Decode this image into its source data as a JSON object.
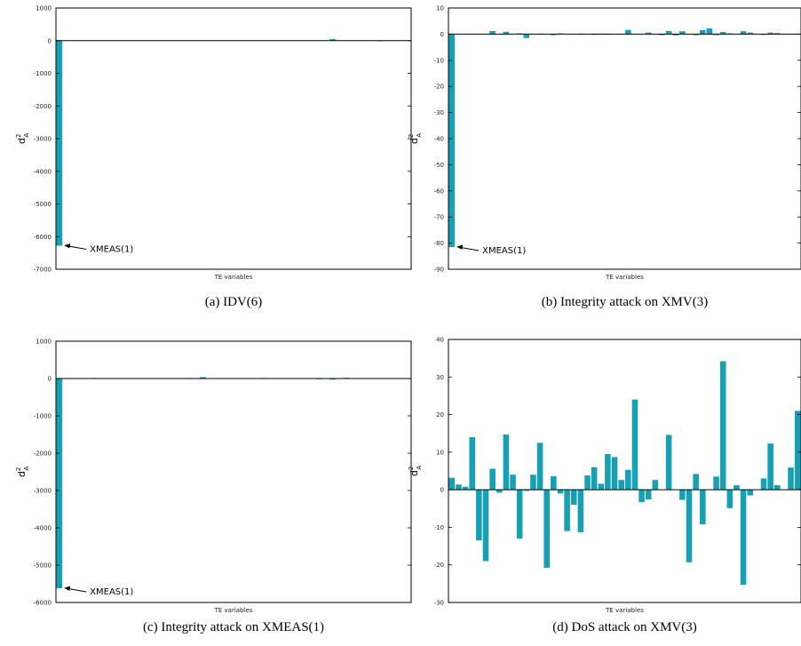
{
  "colors": {
    "bar": "#17a0b4",
    "axis": "#000000"
  },
  "chart_data": [
    {
      "type": "bar",
      "xlabel": "TE variables",
      "ylabel": "d",
      "ylabel_sup": "2",
      "ylabel_sub": "A",
      "ylim": [
        -7000,
        1000
      ],
      "yticks": [
        1000,
        0,
        -1000,
        -2000,
        -3000,
        -4000,
        -5000,
        -6000,
        -7000
      ],
      "n_bars": 52,
      "values": {
        "0": -6280,
        "40": 50,
        "47": -20
      },
      "annotation": {
        "text": "XMEAS(1)",
        "bar_index": 0,
        "value": -6280
      },
      "caption": "(a) IDV(6)"
    },
    {
      "type": "bar",
      "xlabel": "TE variables",
      "ylabel": "d",
      "ylabel_sup": "2",
      "ylabel_sub": "A",
      "ylim": [
        -90,
        10
      ],
      "yticks": [
        10,
        0,
        -10,
        -20,
        -30,
        -40,
        -50,
        -60,
        -70,
        -80,
        -90
      ],
      "n_bars": 52,
      "values": {
        "0": -81.5,
        "6": 1.2,
        "8": 0.9,
        "10": 0.3,
        "11": -1.5,
        "13": 0.2,
        "15": -0.4,
        "16": 0.3,
        "19": 0.2,
        "21": -0.3,
        "22": 0.2,
        "23": -0.2,
        "26": 1.6,
        "29": 0.6,
        "31": -0.4,
        "32": 1.2,
        "33": -0.5,
        "34": 1.1,
        "36": -0.4,
        "37": 1.5,
        "38": 2.2,
        "39": -0.4,
        "40": 0.8,
        "41": 0.3,
        "43": 1.1,
        "44": 0.6,
        "46": -0.3,
        "47": 0.6,
        "48": 0.4
      },
      "annotation": {
        "text": "XMEAS(1)",
        "bar_index": 0,
        "value": -81.5
      },
      "caption": "(b) Integrity attack on XMV(3)"
    },
    {
      "type": "bar",
      "xlabel": "TE variables",
      "ylabel": "d",
      "ylabel_sup": "2",
      "ylabel_sub": "A",
      "ylim": [
        -6000,
        1000
      ],
      "yticks": [
        1000,
        0,
        -1000,
        -2000,
        -3000,
        -4000,
        -5000,
        -6000
      ],
      "n_bars": 52,
      "values": {
        "0": -5620,
        "5": 15,
        "19": 15,
        "21": 40,
        "30": 15,
        "38": -20,
        "40": -30,
        "42": 20
      },
      "annotation": {
        "text": "XMEAS(1)",
        "bar_index": 0,
        "value": -5620
      },
      "caption": "(c) Integrity attack on XMEAS(1)"
    },
    {
      "type": "bar",
      "xlabel": "TE variables",
      "ylabel": "d",
      "ylabel_sup": "2",
      "ylabel_sub": "A",
      "ylim": [
        -30,
        40
      ],
      "yticks": [
        40,
        30,
        20,
        10,
        0,
        -10,
        -20,
        -30
      ],
      "n_bars": 52,
      "values": [
        3.2,
        1.4,
        0.8,
        14.0,
        -13.5,
        -19.0,
        5.6,
        -0.8,
        14.7,
        4.0,
        -13.0,
        -0.3,
        4.0,
        12.5,
        -20.8,
        3.6,
        -1.0,
        -11.0,
        -4.0,
        -11.3,
        3.8,
        6.0,
        1.6,
        9.5,
        8.7,
        2.6,
        5.3,
        24.0,
        -3.3,
        -2.6,
        2.6,
        0.0,
        14.6,
        0.0,
        -2.7,
        -19.3,
        4.2,
        -9.2,
        0.0,
        3.5,
        34.2,
        -4.9,
        1.2,
        -25.3,
        -1.5,
        0.0,
        3.0,
        12.3,
        1.2,
        0.0,
        5.9,
        21.0
      ],
      "caption": "(d) DoS attack on XMV(3)"
    }
  ]
}
